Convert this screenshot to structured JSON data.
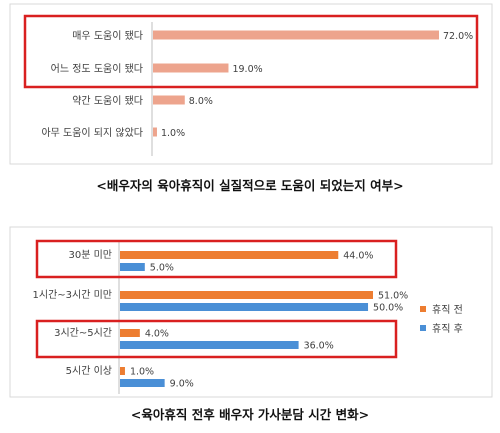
{
  "colors": {
    "chart1_bar": "#eda48d",
    "before": "#ed7d31",
    "after": "#4a8fd6",
    "highlight": "#d92020",
    "axis": "#bfbfbf",
    "frame": "#d9d9d9"
  },
  "chart_data": [
    {
      "type": "bar",
      "orientation": "horizontal",
      "categories": [
        "매우 도움이 됐다",
        "어느 정도 도움이 됐다",
        "약간 도움이 됐다",
        "아무 도움이 되지 않았다"
      ],
      "values": [
        72.0,
        19.0,
        8.0,
        1.0
      ],
      "value_labels": [
        "72.0%",
        "19.0%",
        "8.0%",
        "1.0%"
      ],
      "xlim": [
        0,
        72
      ],
      "caption": "<배우자의 육아휴직이 실질적으로 도움이 되었는지 여부>",
      "legend": null,
      "grid": false,
      "highlighted_categories": [
        "매우 도움이 됐다",
        "어느 정도 도움이 됐다"
      ]
    },
    {
      "type": "bar",
      "orientation": "horizontal",
      "categories": [
        "30분 미만",
        "1시간~3시간 미만",
        "3시간~5시간",
        "5시간 이상"
      ],
      "series": [
        {
          "name": "휴직 전",
          "values": [
            44.0,
            51.0,
            4.0,
            1.0
          ],
          "value_labels": [
            "44.0%",
            "51.0%",
            "4.0%",
            "1.0%"
          ]
        },
        {
          "name": "휴직 후",
          "values": [
            5.0,
            50.0,
            36.0,
            9.0
          ],
          "value_labels": [
            "5.0%",
            "50.0%",
            "36.0%",
            "9.0%"
          ]
        }
      ],
      "xlim": [
        0,
        51
      ],
      "caption": "<육아휴직 전후 배우자 가사분담 시간 변화>",
      "legend": "right",
      "grid": false,
      "highlighted_categories": [
        "30분 미만",
        "3시간~5시간"
      ]
    }
  ]
}
